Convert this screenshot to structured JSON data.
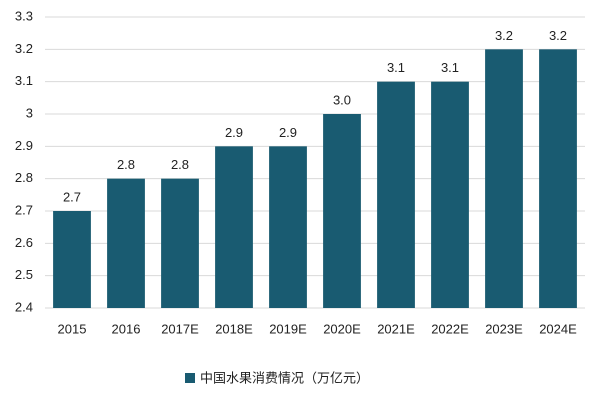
{
  "chart_data": {
    "type": "bar",
    "categories": [
      "2015",
      "2016",
      "2017E",
      "2018E",
      "2019E",
      "2020E",
      "2021E",
      "2022E",
      "2023E",
      "2024E"
    ],
    "series": [
      {
        "name": "中国水果消费情况（万亿元）",
        "color": "#195b71",
        "values": [
          2.7,
          2.8,
          2.8,
          2.9,
          2.9,
          3,
          3.1,
          3.1,
          3.2,
          3.2
        ],
        "value_labels": [
          "2.7",
          "2.8",
          "2.8",
          "2.9",
          "2.9",
          "3.0",
          "3.1",
          "3.1",
          "3.2",
          "3.2"
        ]
      }
    ],
    "ylim": [
      2.4,
      3.3
    ],
    "yticks": [
      2.4,
      2.5,
      2.6,
      2.7,
      2.8,
      2.9,
      3,
      3.1,
      3.2,
      3.3
    ],
    "grid": true,
    "legend": "bottom"
  }
}
